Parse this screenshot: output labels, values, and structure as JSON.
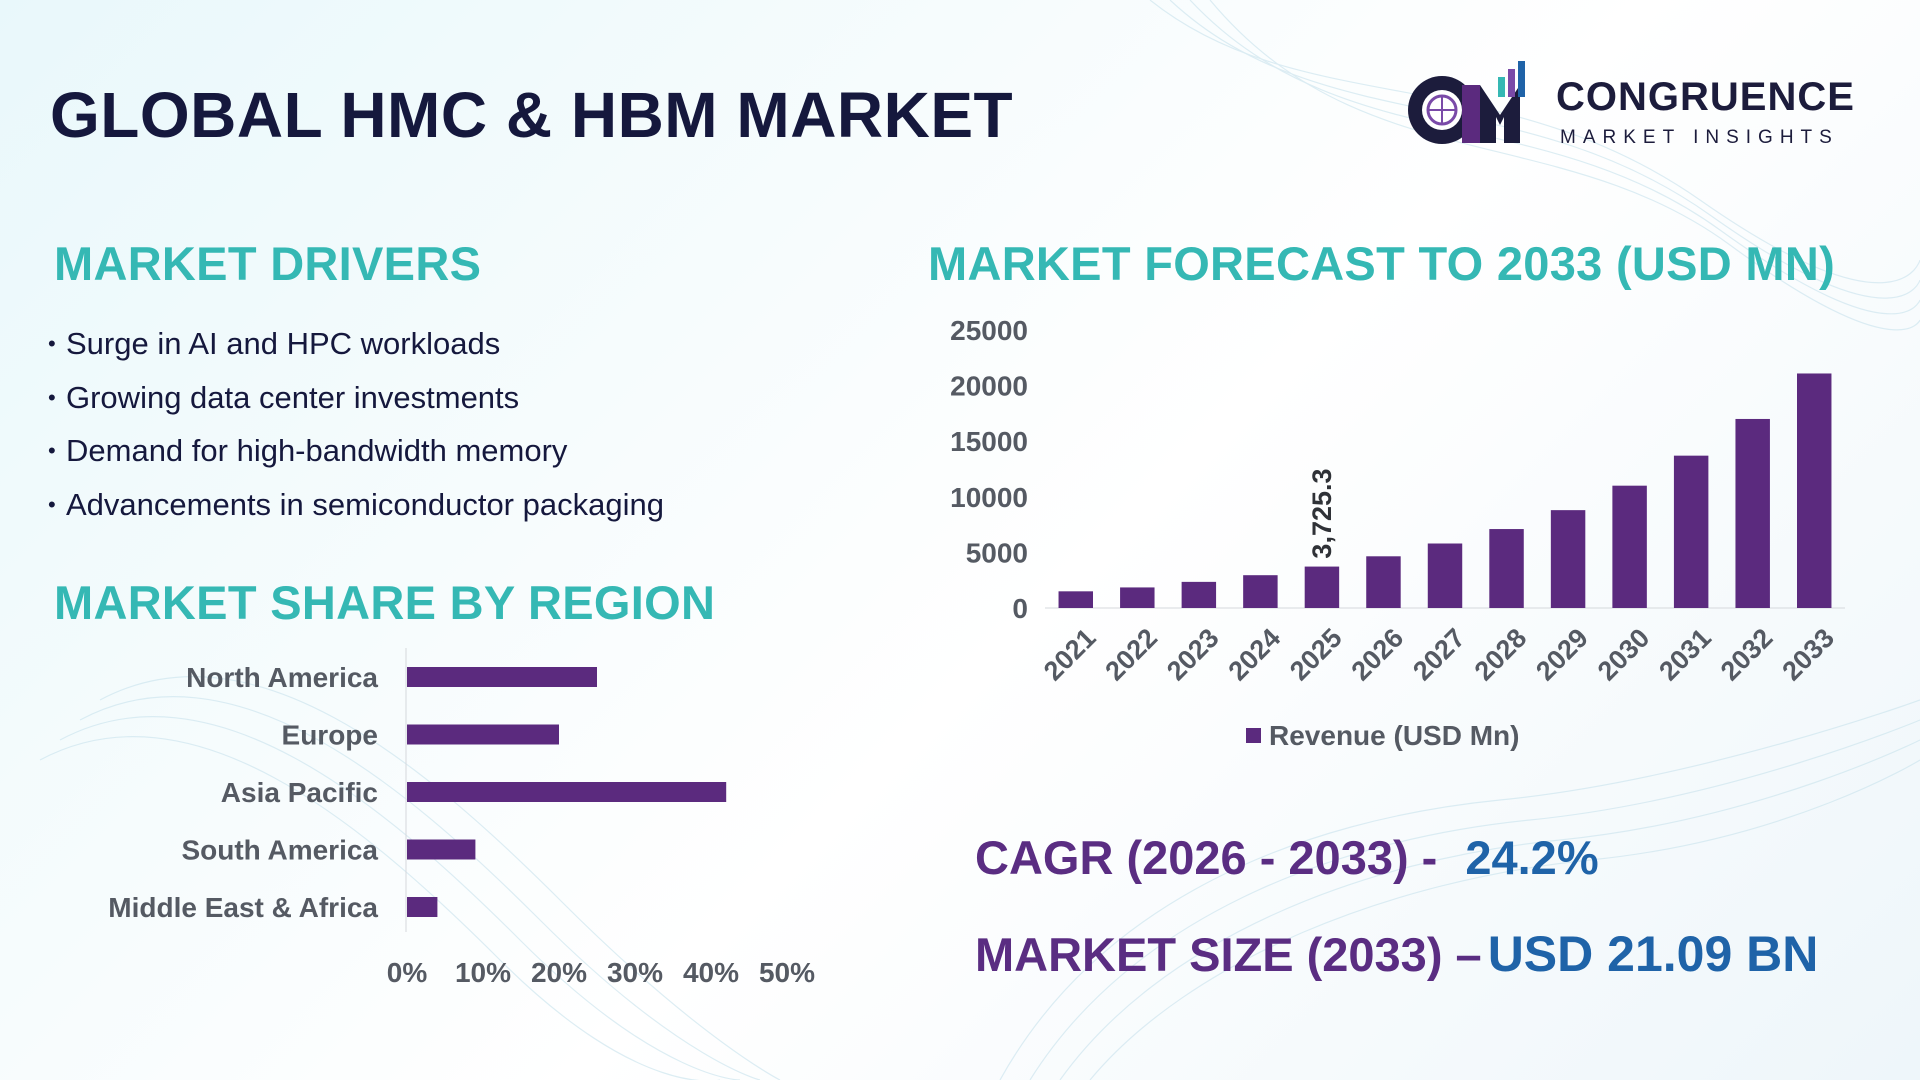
{
  "title": "GLOBAL HMC & HBM MARKET",
  "logo": {
    "mark_text": "CM",
    "name": "CONGRUENCE",
    "tagline": "MARKET INSIGHTS"
  },
  "drivers": {
    "title": "MARKET DRIVERS",
    "bullet": "•",
    "items": [
      "Surge in AI and HPC workloads",
      "Growing data center investments",
      "Demand for high-bandwidth memory",
      "Advancements in semiconductor packaging"
    ]
  },
  "region": {
    "title": "MARKET SHARE BY REGION"
  },
  "forecast": {
    "title": "MARKET FORECAST TO 2033 (USD MN)"
  },
  "stats": {
    "cagr_label": "CAGR (2026 - 2033) -",
    "cagr_value": "24.2%",
    "size_label": "MARKET SIZE (2033) –",
    "size_value": "USD 21.09 BN"
  },
  "colors": {
    "bar": "#5b2a7e",
    "heading": "#35b8b4",
    "title": "#15183d",
    "stat_label": "#5a2d82",
    "stat_value": "#1f63a8"
  },
  "chart_data": [
    {
      "type": "bar",
      "orientation": "horizontal",
      "categories": [
        "North America",
        "Europe",
        "Asia Pacific",
        "South America",
        "Middle East & Africa"
      ],
      "values": [
        25,
        20,
        42,
        9,
        4
      ],
      "xlim": [
        0,
        50
      ],
      "xticks": [
        "0%",
        "10%",
        "20%",
        "30%",
        "40%",
        "50%"
      ],
      "grid": false,
      "legend": "none"
    },
    {
      "type": "bar",
      "categories": [
        "2021",
        "2022",
        "2023",
        "2024",
        "2025",
        "2026",
        "2027",
        "2028",
        "2029",
        "2030",
        "2031",
        "2032",
        "2033"
      ],
      "series": [
        {
          "name": "Revenue (USD Mn)",
          "values": [
            1500,
            1850,
            2350,
            2950,
            3725.3,
            4650,
            5800,
            7100,
            8800,
            11000,
            13700,
            17000,
            21090
          ]
        }
      ],
      "data_labels": [
        {
          "index": 4,
          "text": "3,725.3"
        }
      ],
      "ylim": [
        0,
        25000
      ],
      "yticks": [
        "0",
        "5000",
        "10000",
        "15000",
        "20000",
        "25000"
      ],
      "grid": false,
      "legend": "bottom"
    }
  ]
}
